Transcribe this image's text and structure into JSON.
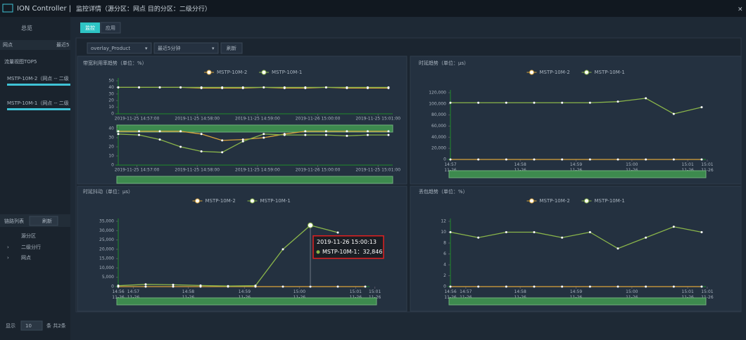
{
  "app": {
    "brand": "ION Controller | V",
    "nav_overview": "总览",
    "filter_source": "网点",
    "filter_time": "最近5",
    "top5_title": "流量视图TOP5",
    "top5_items": [
      "MSTP-10M-2（网点 -- 二级",
      "MSTP-10M-1（网点 -- 二级"
    ],
    "link_list": "链路列表",
    "refresh": "刷新",
    "table_header": "源分区",
    "table_rows": [
      "二级分行",
      "网点"
    ],
    "pager_show": "显示",
    "pager_size": "10",
    "pager_total": "条 共2条"
  },
  "modal": {
    "title": "监控详情（源分区：网点 目的分区：二级分行）",
    "close": "×",
    "tabs": [
      "监控",
      "应用"
    ],
    "select_app": "overlay_Product",
    "select_time": "最近5分钟",
    "refresh": "刷新"
  },
  "chart_data": [
    {
      "type": "line",
      "title": "带宽利用率趋势（单位：%）",
      "legend": "top",
      "ylim": [
        0,
        50
      ],
      "yticks": [
        0,
        10,
        20,
        30,
        40,
        50
      ],
      "xlim": [
        0,
        13
      ],
      "xticks": [
        {
          "value": 0.9,
          "label": "2019-11-25 14:57:00"
        },
        {
          "value": 3.8,
          "label": "2019-11-25 14:58:00"
        },
        {
          "value": 6.7,
          "label": "2019-11-25 14:59:00"
        },
        {
          "value": 9.6,
          "label": "2019-11-26 15:00:00"
        },
        {
          "value": 12.5,
          "label": "2019-11-25 15:01:00"
        }
      ],
      "series": [
        {
          "name": "MSTP-10M-2",
          "color": "#d9a43a",
          "values": [
            40,
            40,
            40,
            40,
            39,
            39,
            39,
            40,
            39,
            39,
            40,
            39,
            39,
            39
          ]
        },
        {
          "name": "MSTP-10M-1",
          "color": "#8ab54a",
          "values": [
            40,
            40,
            40,
            40,
            40,
            40,
            40,
            40,
            40,
            40,
            40,
            40,
            40,
            40
          ]
        }
      ]
    },
    {
      "type": "line",
      "ylim": [
        0,
        40
      ],
      "yticks": [
        0,
        10,
        20,
        30,
        40
      ],
      "xlim": [
        0,
        13
      ],
      "xticks": [
        {
          "value": 0.9,
          "label": "2019-11-25 14:57:00"
        },
        {
          "value": 3.8,
          "label": "2019-11-25 14:58:00"
        },
        {
          "value": 6.7,
          "label": "2019-11-25 14:59:00"
        },
        {
          "value": 9.6,
          "label": "2019-11-26 15:00:00"
        },
        {
          "value": 12.5,
          "label": "2019-11-25 15:01:00"
        }
      ],
      "series": [
        {
          "color": "#d9a43a",
          "values": [
            37,
            37,
            37,
            37,
            34,
            27,
            28,
            30,
            34,
            37,
            37,
            37,
            37,
            37
          ]
        },
        {
          "color": "#8ab54a",
          "values": [
            34,
            33,
            28,
            20,
            15,
            14,
            26,
            34,
            33,
            33,
            33,
            32,
            33,
            33
          ]
        }
      ]
    },
    {
      "type": "line",
      "title": "时延趋势（单位：μs）",
      "legend": "top",
      "ylim": [
        0,
        120000
      ],
      "yticks": [
        0,
        {
          "value": 20000,
          "label": "20,000"
        },
        {
          "value": 40000,
          "label": "40,000"
        },
        {
          "value": 60000,
          "label": "60,000"
        },
        {
          "value": 80000,
          "label": "80,000"
        },
        {
          "value": 100000,
          "label": "100,000"
        },
        {
          "value": 120000,
          "label": "120,000"
        }
      ],
      "xlim": [
        0,
        9
      ],
      "xticks": [
        {
          "value": 0,
          "label": "14:57\n11-26"
        },
        {
          "value": 2.5,
          "label": "14:58\n11-26"
        },
        {
          "value": 4.5,
          "label": "14:59\n11-26"
        },
        {
          "value": 6.5,
          "label": "15:00\n11-26"
        },
        {
          "value": 8.5,
          "label": "15:01\n11-26"
        },
        {
          "value": 9.2,
          "label": "15:01\n11-26"
        }
      ],
      "series": [
        {
          "name": "MSTP-10M-2",
          "color": "#d9a43a",
          "values": [
            0,
            0,
            0,
            0,
            0,
            0,
            0,
            0,
            0,
            0
          ]
        },
        {
          "name": "MSTP-10M-1",
          "color": "#8ab54a",
          "values": [
            102000,
            102000,
            102000,
            102000,
            102000,
            102000,
            104000,
            110000,
            82000,
            94000
          ]
        }
      ]
    },
    {
      "type": "line",
      "title": "时延抖动（单位：μs）",
      "legend": "top",
      "ylim": [
        0,
        35000
      ],
      "yticks": [
        0,
        {
          "value": 5000,
          "label": "5,000"
        },
        {
          "value": 10000,
          "label": "10,000"
        },
        {
          "value": 15000,
          "label": "15,000"
        },
        {
          "value": 20000,
          "label": "20,000"
        },
        {
          "value": 25000,
          "label": "25,000"
        },
        {
          "value": 30000,
          "label": "30,000"
        },
        {
          "value": 35000,
          "label": "35,000"
        }
      ],
      "xlim": [
        0,
        9
      ],
      "xticks": [
        {
          "value": 0,
          "label": "14:56\n11-26"
        },
        {
          "value": 0.55,
          "label": "14:57\n11-26"
        },
        {
          "value": 2.55,
          "label": "14:58\n11-26"
        },
        {
          "value": 4.6,
          "label": "14:59\n11-26"
        },
        {
          "value": 6.6,
          "label": "15:00\n11-26"
        },
        {
          "value": 8.65,
          "label": "15:01\n11-26"
        },
        {
          "value": 9.35,
          "label": "15:01\n11-26"
        }
      ],
      "series": [
        {
          "name": "MSTP-10M-2",
          "color": "#d9a43a",
          "values": [
            0,
            0,
            0,
            0,
            0,
            0,
            0,
            0,
            0,
            0
          ]
        },
        {
          "name": "MSTP-10M-1",
          "color": "#8ab54a",
          "values": [
            500,
            1200,
            1000,
            600,
            300,
            500,
            20000,
            32846,
            29000,
            null
          ]
        }
      ],
      "tooltip": {
        "title": "2019-11-26 15:00:13",
        "text": "MSTP-10M-1：32,846",
        "series": 1,
        "index": 7
      }
    },
    {
      "type": "line",
      "title": "丢包趋势（单位：%）",
      "legend": "top",
      "ylim": [
        0,
        12
      ],
      "yticks": [
        0,
        2,
        4,
        6,
        8,
        10,
        12
      ],
      "xlim": [
        0,
        9
      ],
      "xticks": [
        {
          "value": 0,
          "label": "14:56\n11-26"
        },
        {
          "value": 0.55,
          "label": "14:57\n11-26"
        },
        {
          "value": 2.5,
          "label": "14:58\n11-26"
        },
        {
          "value": 4.5,
          "label": "14:59\n11-26"
        },
        {
          "value": 6.5,
          "label": "15:00\n11-26"
        },
        {
          "value": 8.5,
          "label": "15:01\n11-26"
        },
        {
          "value": 9.2,
          "label": "15:01\n11-26"
        }
      ],
      "series": [
        {
          "name": "MSTP-10M-2",
          "color": "#d9a43a",
          "values": [
            0,
            0,
            0,
            0,
            0,
            0,
            0,
            0,
            0,
            0
          ]
        },
        {
          "name": "MSTP-10M-1",
          "color": "#8ab54a",
          "values": [
            10,
            9,
            10,
            10,
            9,
            10,
            7,
            9,
            11,
            10
          ]
        }
      ]
    }
  ]
}
